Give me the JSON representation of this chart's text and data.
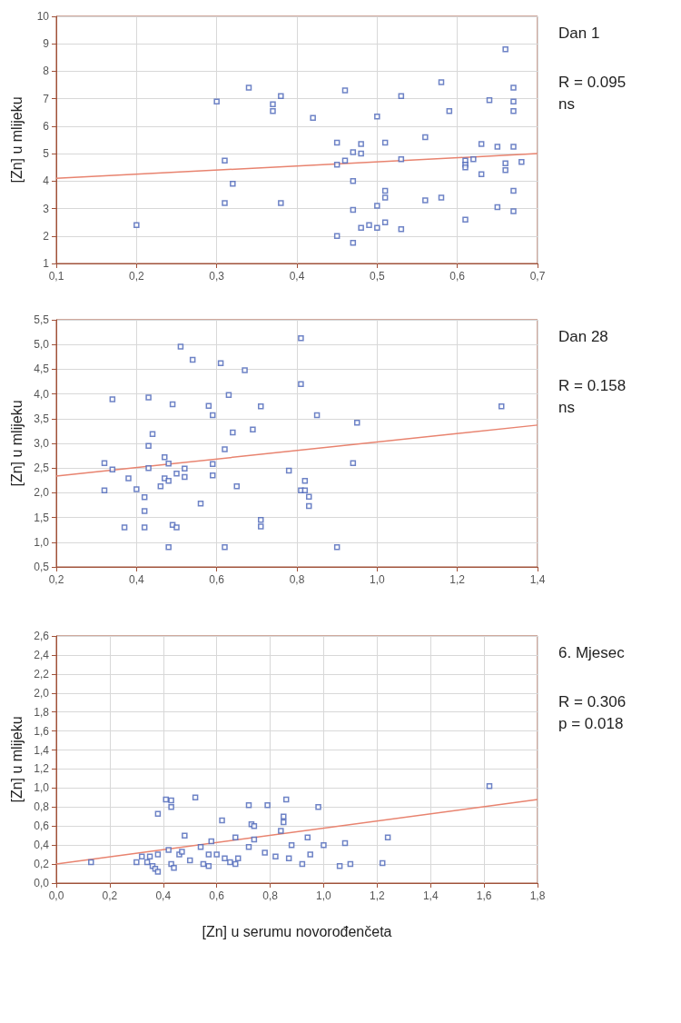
{
  "chart_data": [
    {
      "type": "scatter",
      "ylabel": "[Zn] u mlijeku",
      "annotations": [
        "Dan 1",
        "R = 0.095",
        "ns"
      ],
      "grid": true,
      "marker": "square",
      "xlim": [
        0.1,
        0.7
      ],
      "xticks": [
        {
          "value": 0.1,
          "label": "0,1"
        },
        {
          "value": 0.2,
          "label": "0,2"
        },
        {
          "value": 0.3,
          "label": "0,3"
        },
        {
          "value": 0.4,
          "label": "0,4"
        },
        {
          "value": 0.5,
          "label": "0,5"
        },
        {
          "value": 0.6,
          "label": "0,6"
        },
        {
          "value": 0.7,
          "label": "0,7"
        }
      ],
      "ylim": [
        1,
        10
      ],
      "yticks": [
        1,
        2,
        3,
        4,
        5,
        6,
        7,
        8,
        9,
        10
      ],
      "series": [
        {
          "color": "#4a64b8",
          "x": [
            0.2,
            0.3,
            0.31,
            0.31,
            0.32,
            0.34,
            0.37,
            0.37,
            0.38,
            0.38,
            0.42,
            0.45,
            0.45,
            0.45,
            0.46,
            0.46,
            0.47,
            0.47,
            0.47,
            0.47,
            0.48,
            0.48,
            0.48,
            0.49,
            0.5,
            0.5,
            0.5,
            0.51,
            0.51,
            0.51,
            0.51,
            0.53,
            0.53,
            0.53,
            0.56,
            0.56,
            0.58,
            0.58,
            0.59,
            0.61,
            0.61,
            0.61,
            0.61,
            0.62,
            0.63,
            0.63,
            0.64,
            0.65,
            0.65,
            0.66,
            0.66,
            0.66,
            0.67,
            0.67,
            0.67,
            0.67,
            0.67,
            0.67,
            0.68
          ],
          "values": [
            2.4,
            6.9,
            4.75,
            3.2,
            3.9,
            7.4,
            6.8,
            6.55,
            7.1,
            3.2,
            6.3,
            5.4,
            4.6,
            2.0,
            7.3,
            4.75,
            5.05,
            4.0,
            2.95,
            1.75,
            5.35,
            5.0,
            2.3,
            2.4,
            6.35,
            3.1,
            2.3,
            5.4,
            3.65,
            3.4,
            2.5,
            7.1,
            4.8,
            2.25,
            5.6,
            3.3,
            7.6,
            3.4,
            6.55,
            4.75,
            4.6,
            4.5,
            2.6,
            4.8,
            5.35,
            4.25,
            6.95,
            5.25,
            3.05,
            8.8,
            4.65,
            4.4,
            7.4,
            6.9,
            6.55,
            5.25,
            3.65,
            2.9,
            4.7
          ]
        },
        {
          "type": "line",
          "color": "#e8836f",
          "marker": "none",
          "x": [
            0.1,
            0.7
          ],
          "values": [
            4.1,
            5.0
          ]
        }
      ]
    },
    {
      "type": "scatter",
      "ylabel": "[Zn] u mlijeku",
      "annotations": [
        "Dan 28",
        "R = 0.158",
        "ns"
      ],
      "grid": true,
      "marker": "square",
      "xlim": [
        0.2,
        1.4
      ],
      "xticks": [
        {
          "value": 0.2,
          "label": "0,2"
        },
        {
          "value": 0.4,
          "label": "0,4"
        },
        {
          "value": 0.6,
          "label": "0,6"
        },
        {
          "value": 0.8,
          "label": "0,8"
        },
        {
          "value": 1.0,
          "label": "1,0"
        },
        {
          "value": 1.2,
          "label": "1,2"
        },
        {
          "value": 1.4,
          "label": "1,4"
        }
      ],
      "ylim": [
        0.5,
        5.5
      ],
      "yticks": [
        {
          "value": 0.5,
          "label": "0,5"
        },
        {
          "value": 1.0,
          "label": "1,0"
        },
        {
          "value": 1.5,
          "label": "1,5"
        },
        {
          "value": 2.0,
          "label": "2,0"
        },
        {
          "value": 2.5,
          "label": "2,5"
        },
        {
          "value": 3.0,
          "label": "3,0"
        },
        {
          "value": 3.5,
          "label": "3,5"
        },
        {
          "value": 4.0,
          "label": "4,0"
        },
        {
          "value": 4.5,
          "label": "4,5"
        },
        {
          "value": 5.0,
          "label": "5,0"
        },
        {
          "value": 5.5,
          "label": "5,5"
        }
      ],
      "series": [
        {
          "color": "#4a64b8",
          "x": [
            0.32,
            0.32,
            0.34,
            0.34,
            0.38,
            0.4,
            0.42,
            0.42,
            0.43,
            0.43,
            0.43,
            0.44,
            0.47,
            0.47,
            0.48,
            0.48,
            0.46,
            0.49,
            0.5,
            0.51,
            0.52,
            0.52,
            0.54,
            0.56,
            0.58,
            0.59,
            0.59,
            0.59,
            0.61,
            0.62,
            0.63,
            0.64,
            0.65,
            0.67,
            0.69,
            0.71,
            0.78,
            0.81,
            0.81,
            0.81,
            0.82,
            0.82,
            0.83,
            0.83,
            0.85,
            0.94,
            0.95,
            1.31,
            0.37,
            0.42,
            0.48,
            0.49,
            0.5,
            0.62,
            0.71,
            0.71,
            0.9
          ],
          "values": [
            2.6,
            2.05,
            3.89,
            2.47,
            2.29,
            2.07,
            1.91,
            1.63,
            3.93,
            2.95,
            2.5,
            3.19,
            2.72,
            2.29,
            2.24,
            2.59,
            2.13,
            3.79,
            2.39,
            4.96,
            2.49,
            2.32,
            4.69,
            1.78,
            3.76,
            3.57,
            2.58,
            2.35,
            4.62,
            2.88,
            3.98,
            3.22,
            2.13,
            4.48,
            3.28,
            3.75,
            2.45,
            5.13,
            4.2,
            2.05,
            2.24,
            2.05,
            1.92,
            1.73,
            3.57,
            2.6,
            3.42,
            3.75,
            1.3,
            1.3,
            0.9,
            1.35,
            1.3,
            0.9,
            1.45,
            1.32,
            0.9
          ]
        },
        {
          "type": "line",
          "color": "#e8836f",
          "marker": "none",
          "x": [
            0.2,
            1.4
          ],
          "values": [
            2.34,
            3.37
          ]
        }
      ]
    },
    {
      "type": "scatter",
      "xlabel": "[Zn] u serumu novorođenčeta",
      "ylabel": "[Zn] u mlijeku",
      "annotations": [
        "6. Mjesec",
        "R = 0.306",
        "p = 0.018"
      ],
      "grid": true,
      "marker": "square",
      "xlim": [
        0,
        1.8
      ],
      "xticks": [
        {
          "value": 0,
          "label": "0,0"
        },
        {
          "value": 0.2,
          "label": "0,2"
        },
        {
          "value": 0.4,
          "label": "0,4"
        },
        {
          "value": 0.6,
          "label": "0,6"
        },
        {
          "value": 0.8,
          "label": "0,8"
        },
        {
          "value": 1.0,
          "label": "1,0"
        },
        {
          "value": 1.2,
          "label": "1,2"
        },
        {
          "value": 1.4,
          "label": "1,4"
        },
        {
          "value": 1.6,
          "label": "1,6"
        },
        {
          "value": 1.8,
          "label": "1,8"
        }
      ],
      "ylim": [
        0,
        2.6
      ],
      "yticks": [
        {
          "value": 0,
          "label": "0,0"
        },
        {
          "value": 0.2,
          "label": "0,2"
        },
        {
          "value": 0.4,
          "label": "0,4"
        },
        {
          "value": 0.6,
          "label": "0,6"
        },
        {
          "value": 0.8,
          "label": "0,8"
        },
        {
          "value": 1.0,
          "label": "1,0"
        },
        {
          "value": 1.2,
          "label": "1,2"
        },
        {
          "value": 1.4,
          "label": "1,4"
        },
        {
          "value": 1.6,
          "label": "1,6"
        },
        {
          "value": 1.8,
          "label": "1,8"
        },
        {
          "value": 2.0,
          "label": "2,0"
        },
        {
          "value": 2.2,
          "label": "2,2"
        },
        {
          "value": 2.4,
          "label": "2,4"
        },
        {
          "value": 2.6,
          "label": "2,6"
        }
      ],
      "series": [
        {
          "color": "#4a64b8",
          "x": [
            0.13,
            0.3,
            0.32,
            0.34,
            0.35,
            0.36,
            0.37,
            0.38,
            0.38,
            0.38,
            0.41,
            0.43,
            0.43,
            0.42,
            0.43,
            0.44,
            0.46,
            0.47,
            0.48,
            0.5,
            0.52,
            0.54,
            0.55,
            0.57,
            0.57,
            0.58,
            0.6,
            0.62,
            0.63,
            0.65,
            0.67,
            0.67,
            0.68,
            0.72,
            0.72,
            0.73,
            0.74,
            0.74,
            0.78,
            0.79,
            0.82,
            0.84,
            0.85,
            0.85,
            0.86,
            0.87,
            0.88,
            0.92,
            0.94,
            0.95,
            0.98,
            1.0,
            1.06,
            1.08,
            1.1,
            1.22,
            1.24,
            1.62
          ],
          "values": [
            0.22,
            0.22,
            0.28,
            0.22,
            0.28,
            0.18,
            0.15,
            0.3,
            0.12,
            0.73,
            0.88,
            0.87,
            0.8,
            0.35,
            0.2,
            0.16,
            0.3,
            0.33,
            0.5,
            0.24,
            0.9,
            0.38,
            0.2,
            0.18,
            0.3,
            0.44,
            0.3,
            0.66,
            0.26,
            0.22,
            0.48,
            0.2,
            0.26,
            0.82,
            0.38,
            0.62,
            0.6,
            0.46,
            0.32,
            0.82,
            0.28,
            0.55,
            0.7,
            0.64,
            0.88,
            0.26,
            0.4,
            0.2,
            0.48,
            0.3,
            0.8,
            0.4,
            0.18,
            0.42,
            0.2,
            0.21,
            0.48,
            1.02
          ]
        },
        {
          "type": "line",
          "color": "#e8836f",
          "marker": "none",
          "x": [
            0,
            1.8
          ],
          "values": [
            0.2,
            0.88
          ]
        }
      ]
    }
  ]
}
